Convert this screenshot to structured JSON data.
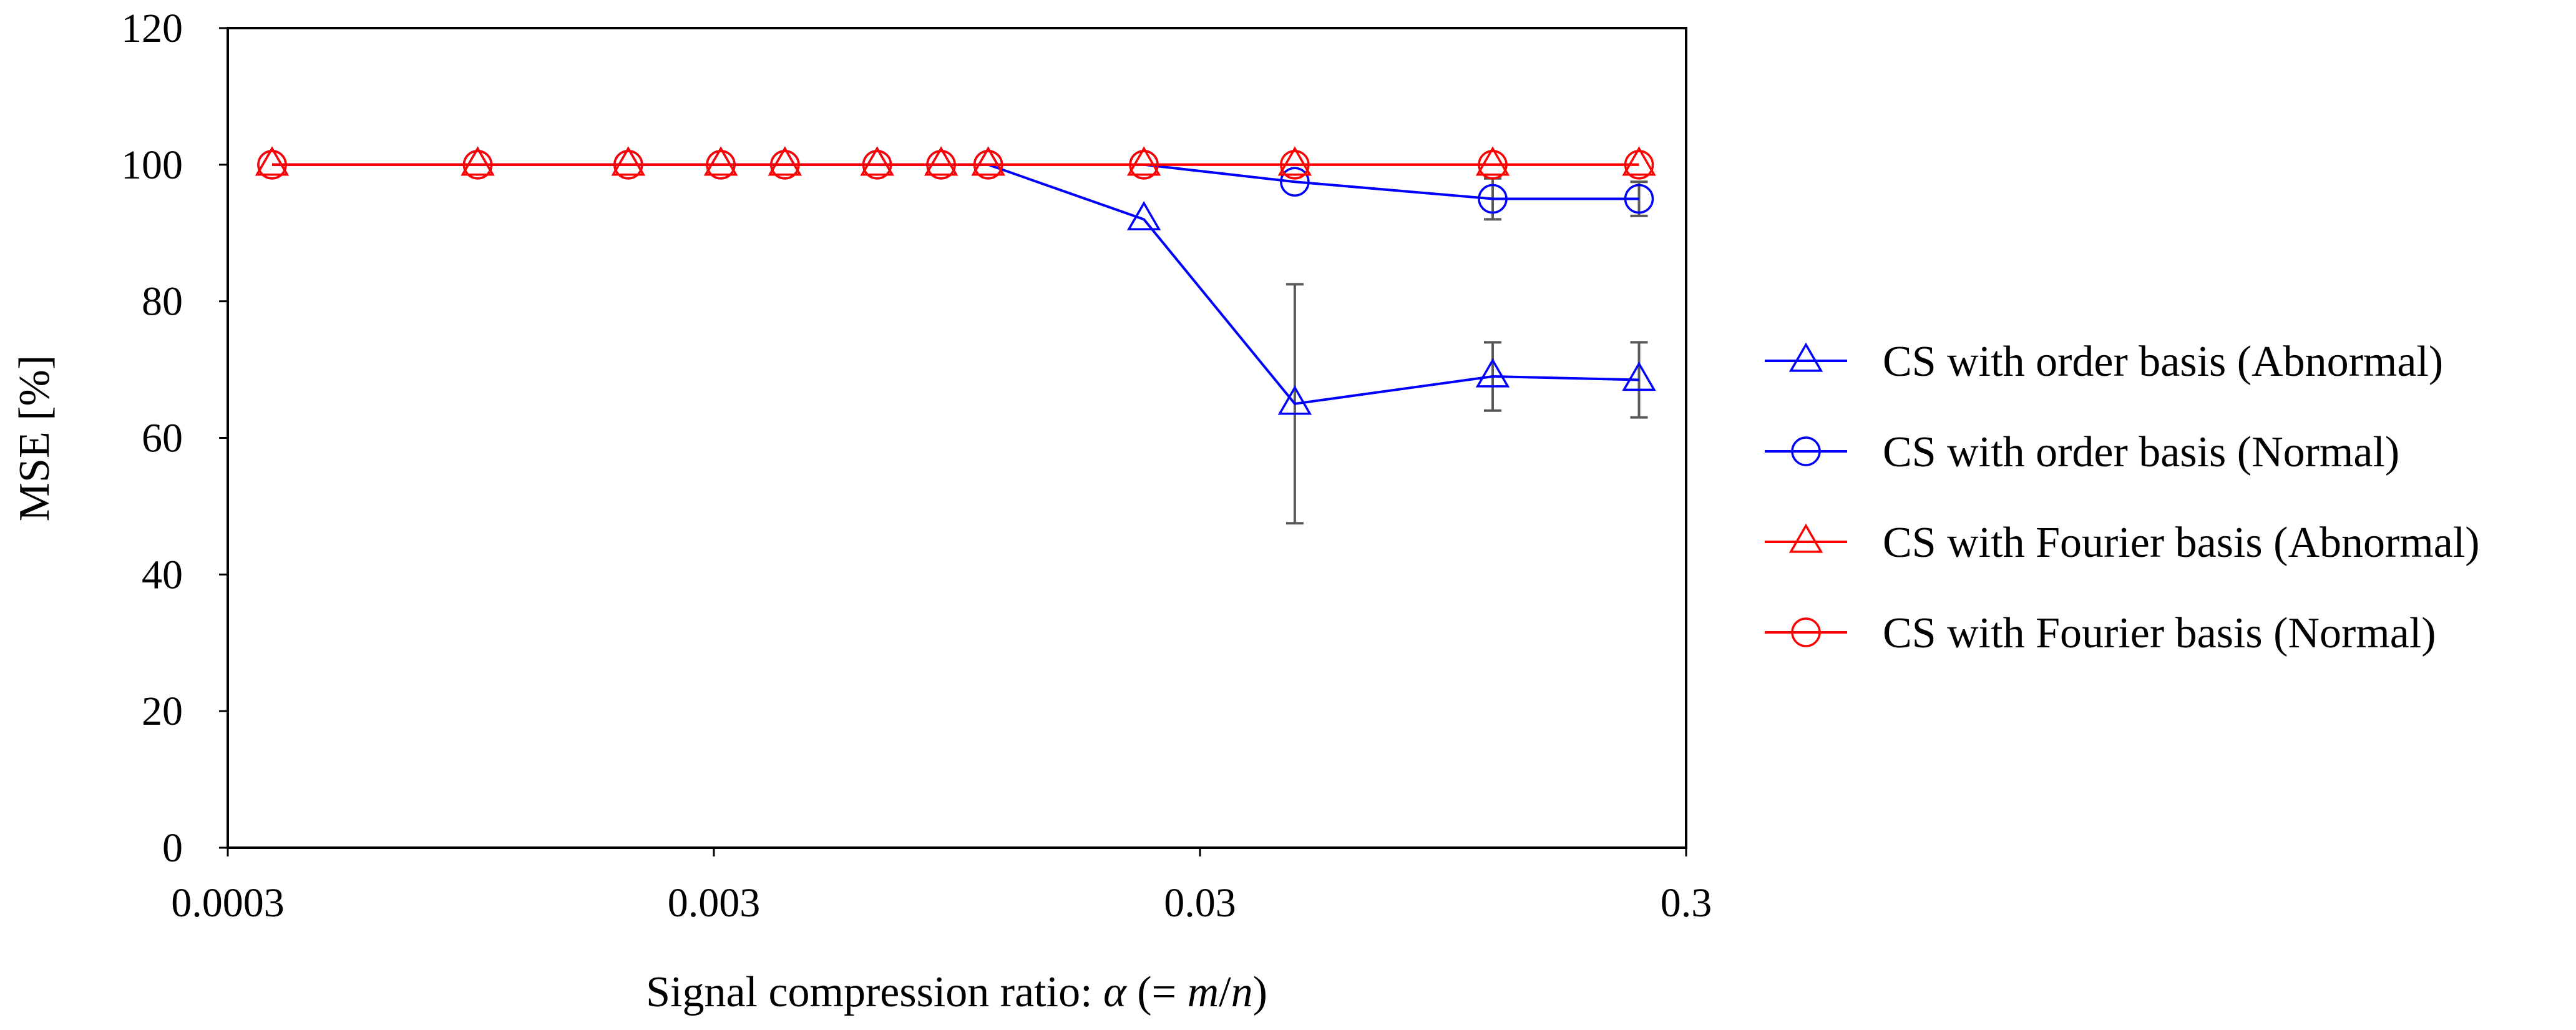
{
  "chart_data": {
    "type": "line",
    "xscale": "log",
    "title": "",
    "xlabel": {
      "prefix": "Signal compression ratio: ",
      "alpha": "α",
      "open": " (= ",
      "m": "m",
      "slash": "/",
      "n": "n",
      "close": ")"
    },
    "ylabel": "MSE [%]",
    "xlim": [
      0.0003,
      0.3
    ],
    "ylim": [
      0,
      120
    ],
    "xticks": [
      0.0003,
      0.003,
      0.03,
      0.3
    ],
    "xtick_labels": [
      "0.0003",
      "0.003",
      "0.03",
      "0.3"
    ],
    "yticks": [
      0,
      20,
      40,
      60,
      80,
      100,
      120
    ],
    "ytick_labels": [
      "0",
      "20",
      "40",
      "60",
      "80",
      "100",
      "120"
    ],
    "grid": false,
    "legend_position": "right",
    "x": [
      0.00037,
      0.00098,
      0.002,
      0.0031,
      0.0042,
      0.0065,
      0.0088,
      0.011,
      0.023,
      0.047,
      0.12,
      0.24
    ],
    "series": [
      {
        "name": "CS with order basis (Abnormal)",
        "color": "#0000ff",
        "marker": "triangle",
        "values": [
          100,
          100,
          100,
          100,
          100,
          100,
          100,
          100,
          92,
          65,
          69,
          68.5
        ],
        "errors": [
          0,
          0,
          0,
          0,
          0,
          0,
          0,
          0,
          0,
          17.5,
          5,
          5.5
        ]
      },
      {
        "name": "CS with order basis (Normal)",
        "color": "#0000ff",
        "marker": "circle",
        "values": [
          100,
          100,
          100,
          100,
          100,
          100,
          100,
          100,
          100,
          97.5,
          95,
          95
        ],
        "errors": [
          0,
          0,
          0,
          0,
          0,
          0,
          0,
          0,
          0,
          0,
          3,
          2.5
        ]
      },
      {
        "name": "CS with Fourier basis (Abnormal)",
        "color": "#ff0000",
        "marker": "triangle",
        "values": [
          100,
          100,
          100,
          100,
          100,
          100,
          100,
          100,
          100,
          100,
          100,
          100
        ],
        "errors": [
          0,
          0,
          0,
          0,
          0,
          0,
          0,
          0,
          0,
          0,
          0,
          0
        ]
      },
      {
        "name": "CS with Fourier basis (Normal)",
        "color": "#ff0000",
        "marker": "circle",
        "values": [
          100,
          100,
          100,
          100,
          100,
          100,
          100,
          100,
          100,
          100,
          100,
          100
        ],
        "errors": [
          0,
          0,
          0,
          0,
          0,
          0,
          0,
          0,
          0,
          0,
          0,
          0
        ]
      }
    ],
    "errorbar_color": "#595959"
  }
}
